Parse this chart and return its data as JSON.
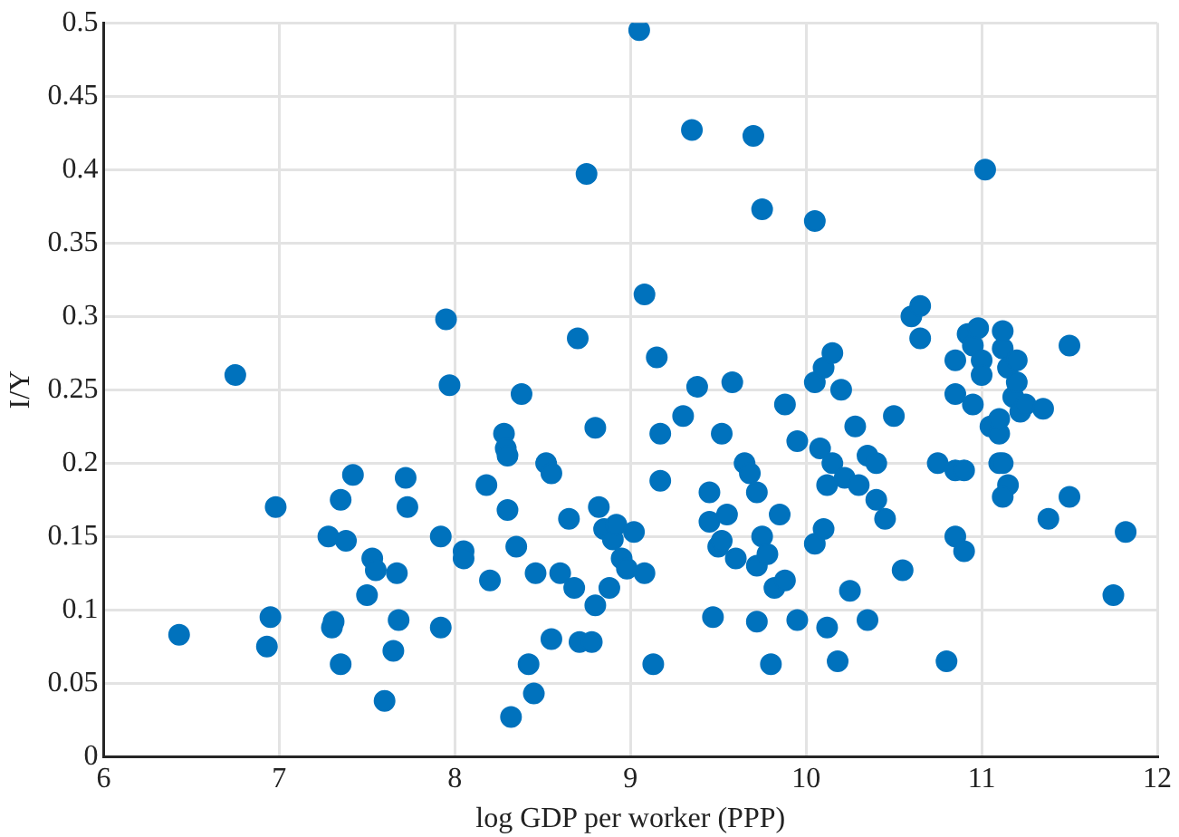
{
  "chart_data": {
    "type": "scatter",
    "xlabel": "log GDP per worker (PPP)",
    "ylabel": "I/Y",
    "xlim": [
      6,
      12
    ],
    "xticks": [
      6,
      7,
      8,
      9,
      10,
      11,
      12
    ],
    "ylim": [
      0,
      0.5
    ],
    "yticks": [
      0,
      0.05,
      0.1,
      0.15,
      0.2,
      0.25,
      0.3,
      0.35,
      0.4,
      0.45,
      0.5
    ],
    "grid": true,
    "marker": "circle",
    "legend": false,
    "series": [
      {
        "color": "#0072bd",
        "x": [
          6.43,
          6.75,
          6.93,
          6.95,
          6.98,
          7.28,
          7.3,
          7.31,
          7.35,
          7.35,
          7.38,
          7.42,
          7.5,
          7.53,
          7.55,
          7.6,
          7.65,
          7.67,
          7.68,
          7.72,
          7.73,
          7.92,
          7.92,
          7.95,
          7.97,
          8.05,
          8.05,
          8.18,
          8.2,
          8.28,
          8.29,
          8.3,
          8.3,
          8.32,
          8.35,
          8.38,
          8.42,
          8.45,
          8.46,
          8.52,
          8.55,
          8.55,
          8.6,
          8.65,
          8.68,
          8.7,
          8.71,
          8.75,
          8.78,
          8.8,
          8.8,
          8.82,
          8.85,
          8.88,
          8.9,
          8.92,
          8.95,
          8.98,
          9.02,
          9.05,
          9.08,
          9.08,
          9.13,
          9.15,
          9.17,
          9.17,
          9.3,
          9.35,
          9.38,
          9.45,
          9.45,
          9.47,
          9.5,
          9.52,
          9.52,
          9.55,
          9.58,
          9.6,
          9.65,
          9.68,
          9.7,
          9.72,
          9.72,
          9.72,
          9.75,
          9.75,
          9.78,
          9.8,
          9.82,
          9.85,
          9.88,
          9.88,
          9.95,
          9.95,
          10.05,
          10.05,
          10.05,
          10.08,
          10.1,
          10.1,
          10.12,
          10.12,
          10.15,
          10.15,
          10.18,
          10.2,
          10.22,
          10.25,
          10.28,
          10.3,
          10.35,
          10.35,
          10.4,
          10.4,
          10.45,
          10.5,
          10.55,
          10.6,
          10.65,
          10.65,
          10.75,
          10.85,
          10.85,
          10.8,
          10.85,
          10.9,
          10.85,
          10.9,
          10.92,
          10.95,
          10.98,
          11.0,
          11.0,
          11.02,
          11.05,
          11.1,
          11.1,
          11.12,
          11.12,
          11.15,
          11.18,
          11.2,
          11.2,
          11.22,
          11.25,
          11.1,
          11.12,
          11.15,
          11.12,
          10.95,
          11.35,
          11.38,
          11.5,
          11.5,
          11.75,
          11.82
        ],
        "values": [
          0.083,
          0.26,
          0.075,
          0.095,
          0.17,
          0.15,
          0.088,
          0.092,
          0.175,
          0.063,
          0.147,
          0.192,
          0.11,
          0.135,
          0.127,
          0.038,
          0.072,
          0.125,
          0.093,
          0.19,
          0.17,
          0.15,
          0.088,
          0.298,
          0.253,
          0.14,
          0.135,
          0.185,
          0.12,
          0.22,
          0.21,
          0.205,
          0.168,
          0.027,
          0.143,
          0.247,
          0.063,
          0.043,
          0.125,
          0.2,
          0.193,
          0.08,
          0.125,
          0.162,
          0.115,
          0.285,
          0.078,
          0.397,
          0.078,
          0.224,
          0.103,
          0.17,
          0.155,
          0.115,
          0.148,
          0.158,
          0.135,
          0.128,
          0.153,
          0.495,
          0.315,
          0.125,
          0.063,
          0.272,
          0.22,
          0.188,
          0.232,
          0.427,
          0.252,
          0.18,
          0.16,
          0.095,
          0.143,
          0.147,
          0.22,
          0.165,
          0.255,
          0.135,
          0.2,
          0.193,
          0.423,
          0.18,
          0.13,
          0.092,
          0.373,
          0.15,
          0.138,
          0.063,
          0.115,
          0.165,
          0.24,
          0.12,
          0.215,
          0.093,
          0.365,
          0.255,
          0.145,
          0.21,
          0.265,
          0.155,
          0.185,
          0.088,
          0.275,
          0.2,
          0.065,
          0.25,
          0.19,
          0.113,
          0.225,
          0.185,
          0.205,
          0.093,
          0.2,
          0.175,
          0.162,
          0.232,
          0.127,
          0.3,
          0.307,
          0.285,
          0.2,
          0.27,
          0.247,
          0.065,
          0.195,
          0.195,
          0.15,
          0.14,
          0.288,
          0.28,
          0.292,
          0.27,
          0.26,
          0.4,
          0.225,
          0.22,
          0.23,
          0.278,
          0.29,
          0.265,
          0.245,
          0.27,
          0.255,
          0.235,
          0.24,
          0.2,
          0.2,
          0.185,
          0.177,
          0.24,
          0.237,
          0.162,
          0.28,
          0.177,
          0.11,
          0.153
        ]
      }
    ]
  }
}
